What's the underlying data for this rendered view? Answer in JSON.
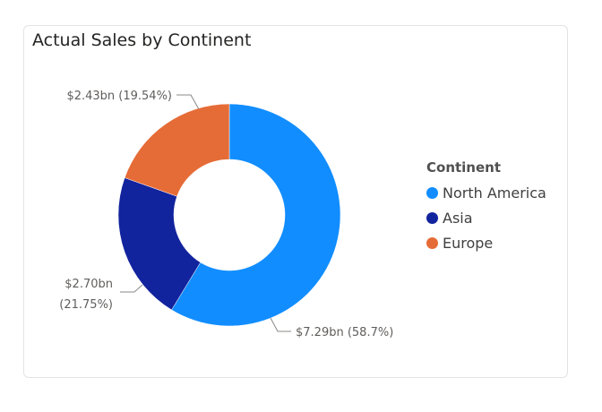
{
  "chart_data": {
    "type": "pie",
    "subtype": "donut",
    "title": "Actual Sales by Continent",
    "legend_title": "Continent",
    "legend_position": "right",
    "slices": [
      {
        "name": "North America",
        "value": 7.29,
        "percent": 58.7,
        "color": "#118dff",
        "label": "$7.29bn (58.7%)"
      },
      {
        "name": "Asia",
        "value": 2.7,
        "percent": 21.75,
        "color": "#12239e",
        "label_lines": [
          "$2.70bn",
          "(21.75%)"
        ]
      },
      {
        "name": "Europe",
        "value": 2.43,
        "percent": 19.54,
        "color": "#e66c37",
        "label": "$2.43bn (19.54%)"
      }
    ]
  }
}
